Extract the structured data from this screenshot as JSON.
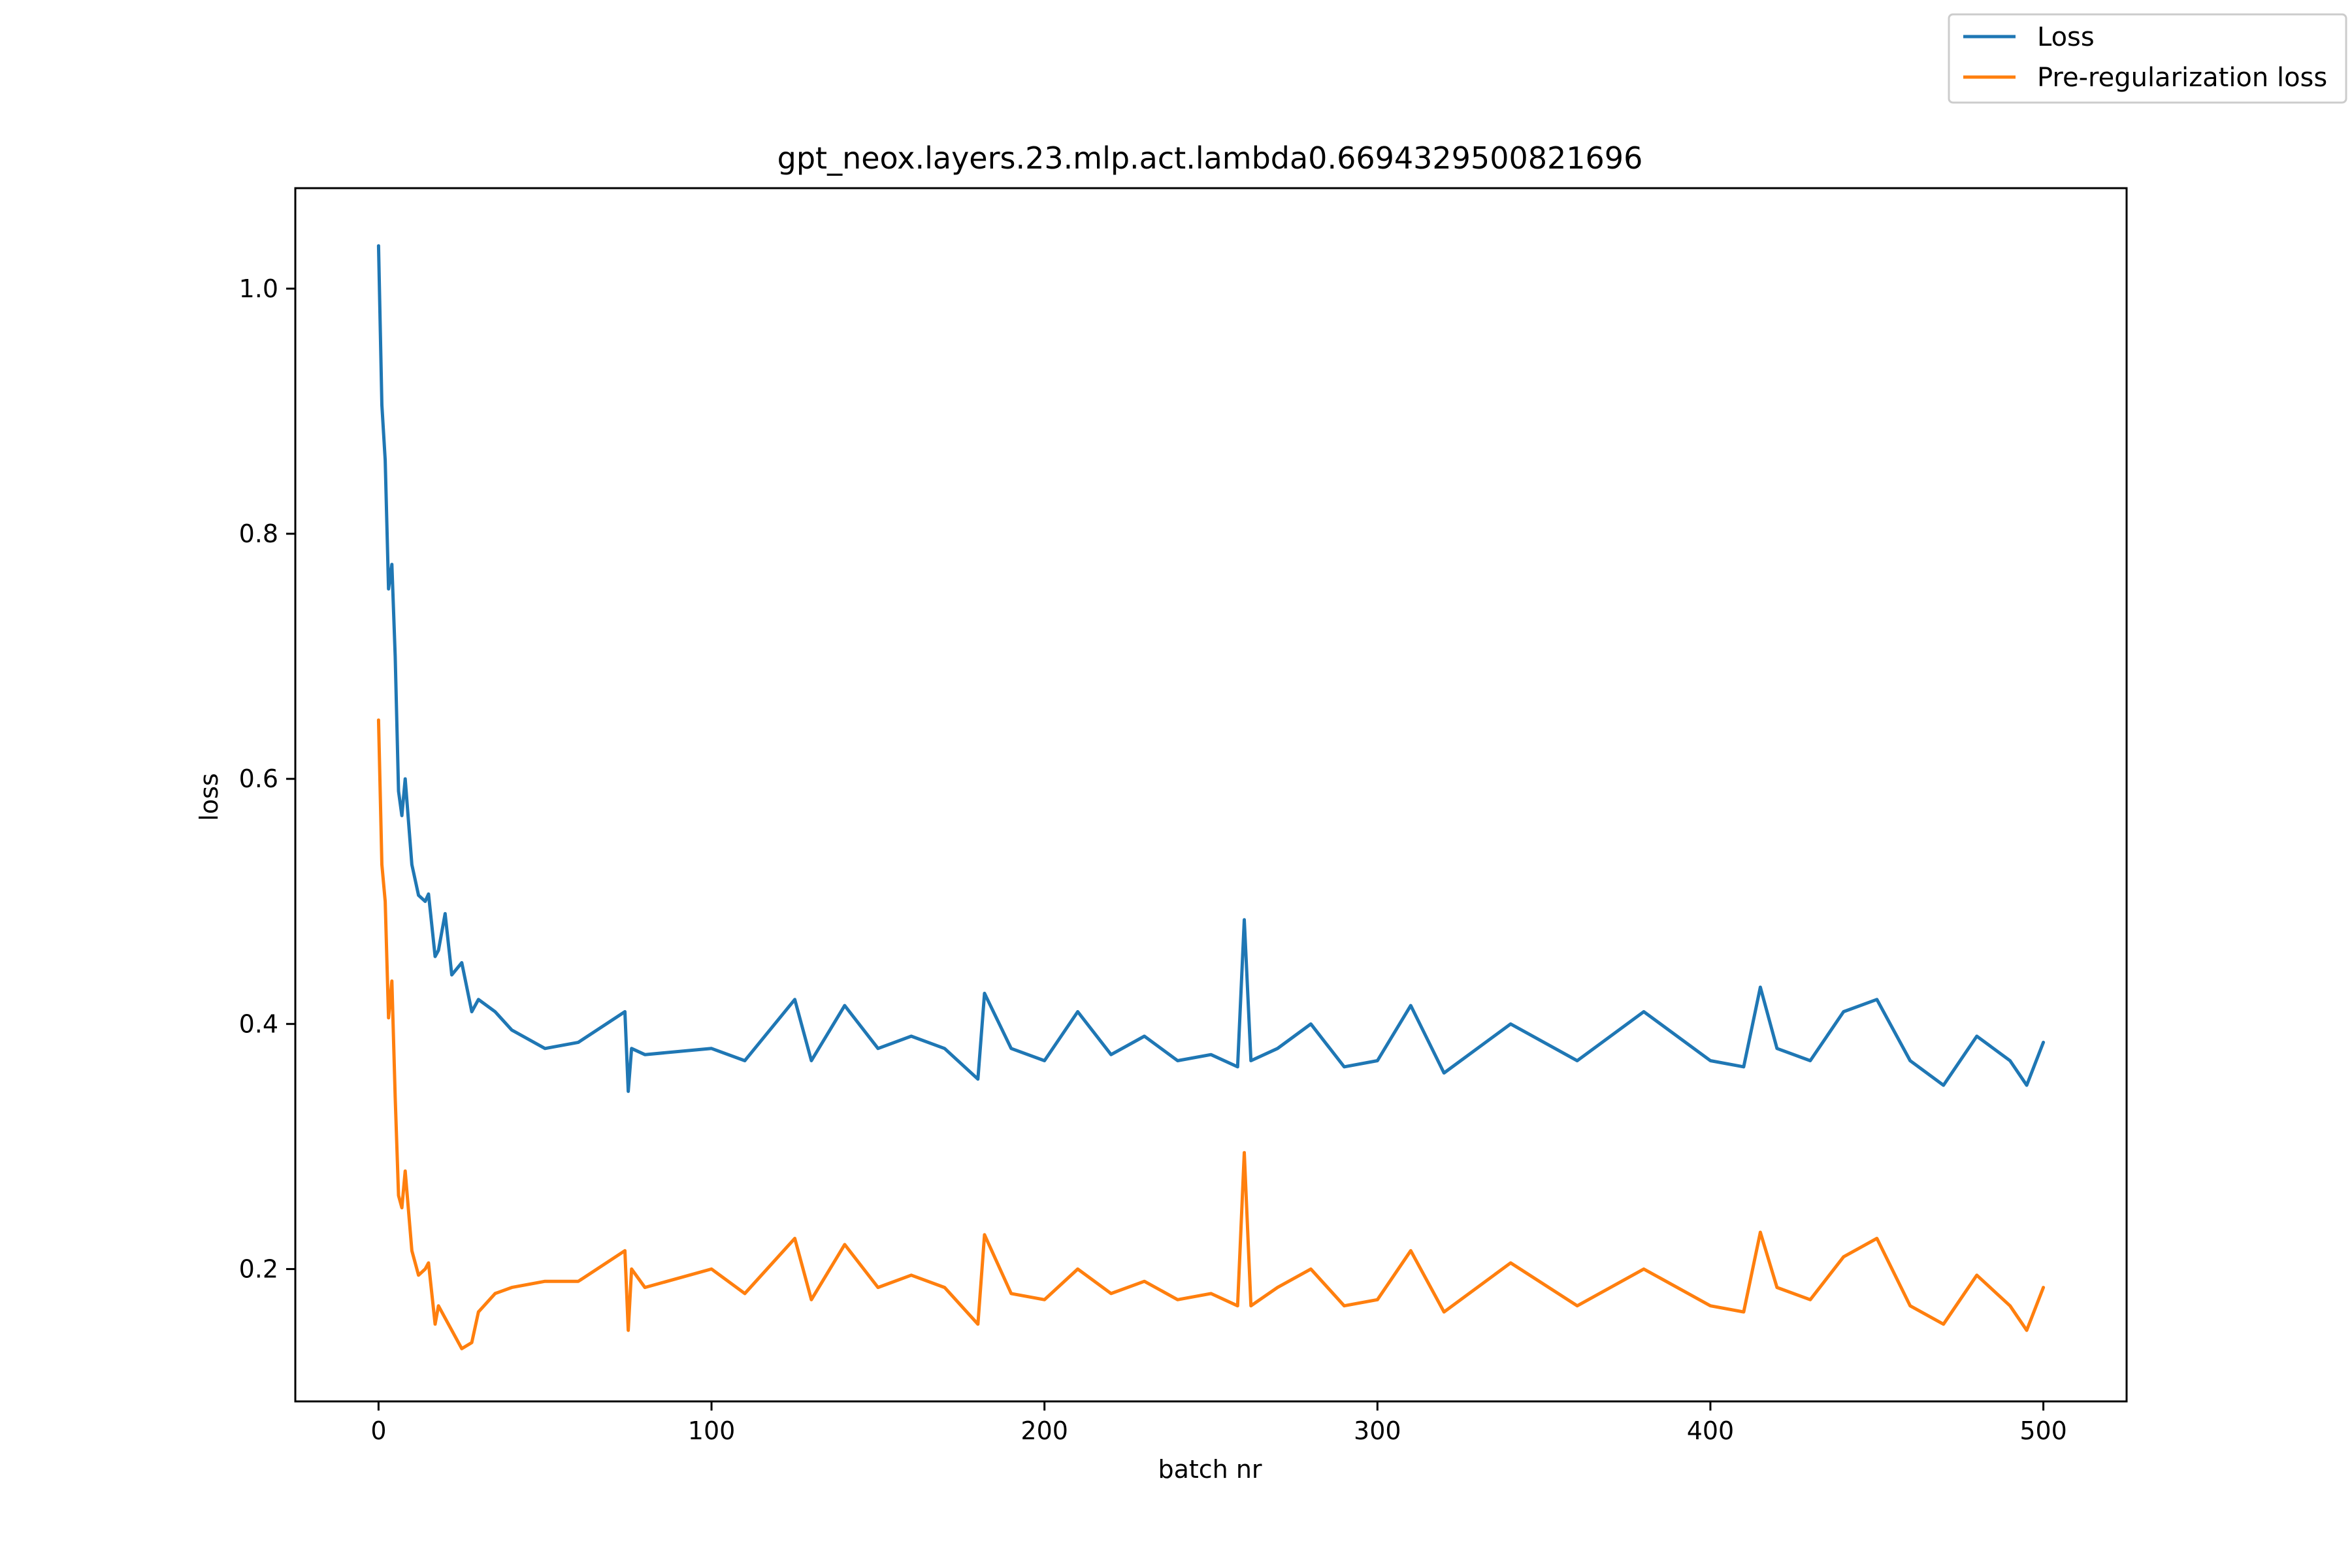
{
  "chart_data": {
    "type": "line",
    "title": "gpt_neox.layers.23.mlp.act.lambda0.6694329500821696",
    "xlabel": "batch nr",
    "ylabel": "loss",
    "xlim": [
      -25,
      525
    ],
    "ylim": [
      0.092,
      1.082
    ],
    "xticks": [
      0,
      100,
      200,
      300,
      400,
      500
    ],
    "xtick_labels": [
      "0",
      "100",
      "200",
      "300",
      "400",
      "500"
    ],
    "yticks": [
      0.2,
      0.4,
      0.6,
      0.8,
      1.0
    ],
    "ytick_labels": [
      "0.2",
      "0.4",
      "0.6",
      "0.8",
      "1.0"
    ],
    "legend_position": "top-right",
    "series": [
      {
        "name": "Loss",
        "color": "#1f77b4",
        "x": [
          0,
          1,
          2,
          3,
          4,
          5,
          6,
          7,
          8,
          10,
          12,
          14,
          15,
          17,
          18,
          20,
          22,
          25,
          28,
          30,
          35,
          40,
          50,
          60,
          74,
          75,
          76,
          80,
          100,
          110,
          125,
          130,
          140,
          150,
          160,
          170,
          180,
          182,
          190,
          200,
          210,
          220,
          230,
          240,
          250,
          258,
          260,
          262,
          270,
          280,
          290,
          300,
          310,
          320,
          340,
          360,
          380,
          400,
          410,
          415,
          420,
          430,
          440,
          450,
          460,
          470,
          480,
          490,
          495,
          500
        ],
        "y": [
          1.035,
          0.905,
          0.86,
          0.755,
          0.775,
          0.7,
          0.59,
          0.57,
          0.6,
          0.53,
          0.505,
          0.5,
          0.506,
          0.455,
          0.46,
          0.49,
          0.44,
          0.45,
          0.41,
          0.42,
          0.41,
          0.395,
          0.38,
          0.385,
          0.41,
          0.345,
          0.38,
          0.375,
          0.38,
          0.37,
          0.42,
          0.37,
          0.415,
          0.38,
          0.39,
          0.38,
          0.355,
          0.425,
          0.38,
          0.37,
          0.41,
          0.375,
          0.39,
          0.37,
          0.375,
          0.365,
          0.485,
          0.37,
          0.38,
          0.4,
          0.365,
          0.37,
          0.415,
          0.36,
          0.4,
          0.37,
          0.41,
          0.37,
          0.365,
          0.43,
          0.38,
          0.37,
          0.41,
          0.42,
          0.37,
          0.35,
          0.39,
          0.37,
          0.35,
          0.385
        ]
      },
      {
        "name": "Pre-regularization loss",
        "color": "#ff7f0e",
        "x": [
          0,
          1,
          2,
          3,
          4,
          5,
          6,
          7,
          8,
          10,
          12,
          14,
          15,
          17,
          18,
          20,
          22,
          25,
          28,
          30,
          35,
          40,
          50,
          60,
          74,
          75,
          76,
          80,
          100,
          110,
          125,
          130,
          140,
          150,
          160,
          170,
          180,
          182,
          190,
          200,
          210,
          220,
          230,
          240,
          250,
          258,
          260,
          262,
          270,
          280,
          290,
          300,
          310,
          320,
          340,
          360,
          380,
          400,
          410,
          415,
          420,
          430,
          440,
          450,
          460,
          470,
          480,
          490,
          495,
          500
        ],
        "y": [
          0.648,
          0.53,
          0.5,
          0.405,
          0.435,
          0.34,
          0.26,
          0.25,
          0.28,
          0.215,
          0.195,
          0.2,
          0.205,
          0.155,
          0.17,
          0.16,
          0.15,
          0.135,
          0.14,
          0.165,
          0.18,
          0.185,
          0.19,
          0.19,
          0.215,
          0.15,
          0.2,
          0.185,
          0.2,
          0.18,
          0.225,
          0.175,
          0.22,
          0.185,
          0.195,
          0.185,
          0.155,
          0.228,
          0.18,
          0.175,
          0.2,
          0.18,
          0.19,
          0.175,
          0.18,
          0.17,
          0.295,
          0.17,
          0.185,
          0.2,
          0.17,
          0.175,
          0.215,
          0.165,
          0.205,
          0.17,
          0.2,
          0.17,
          0.165,
          0.23,
          0.185,
          0.175,
          0.21,
          0.225,
          0.17,
          0.155,
          0.195,
          0.17,
          0.15,
          0.185
        ]
      }
    ]
  }
}
